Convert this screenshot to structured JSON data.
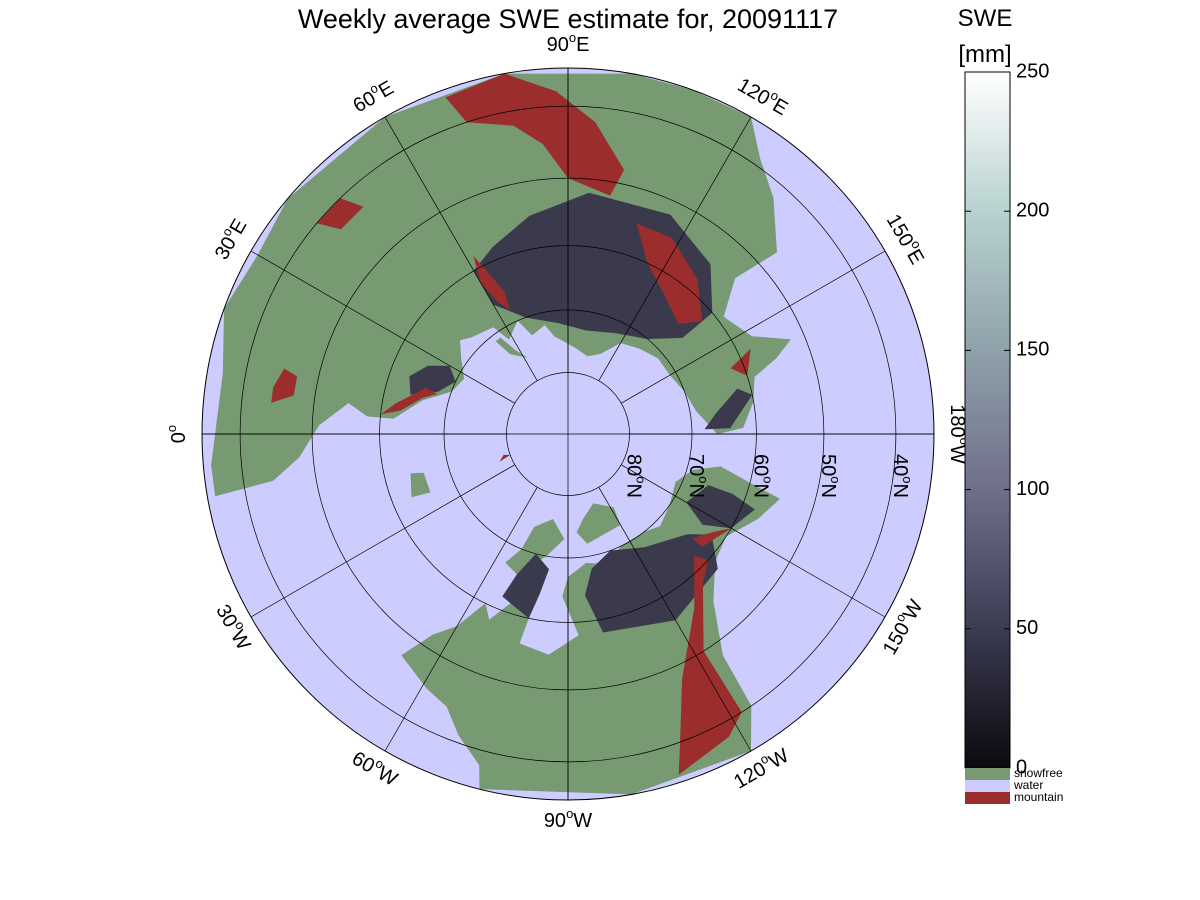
{
  "title": "Weekly average SWE estimate for, 20091117",
  "colorbar": {
    "unit_top": "SWE",
    "unit_bottom": "[mm]",
    "ticks": [
      {
        "value": 0,
        "label": "0"
      },
      {
        "value": 50,
        "label": "50"
      },
      {
        "value": 100,
        "label": "100"
      },
      {
        "value": 150,
        "label": "150"
      },
      {
        "value": 200,
        "label": "200"
      },
      {
        "value": 250,
        "label": "250"
      }
    ],
    "range": [
      0,
      250
    ],
    "colors": [
      "#0a0a0e",
      "#3b3b52",
      "#6f6f8a",
      "#8fa1aa",
      "#b8d2d0",
      "#ffffff"
    ]
  },
  "categories": [
    {
      "label": "snowfree",
      "color": "#779a72"
    },
    {
      "label": "water",
      "color": "#ccccff"
    },
    {
      "label": "mountain",
      "color": "#9b2d2d"
    }
  ],
  "map": {
    "projection": "north polar stereographic",
    "ocean_color": "#ccccff",
    "land_color": "#779a72",
    "mountain_color": "#9b2d2d",
    "snow_color": "#3a3a4c",
    "longitudes": [
      {
        "deg": 0,
        "label": "0",
        "sup": "o",
        "suffix": ""
      },
      {
        "deg": 30,
        "label": "30",
        "sup": "o",
        "suffix": "E"
      },
      {
        "deg": 60,
        "label": "60",
        "sup": "o",
        "suffix": "E"
      },
      {
        "deg": 90,
        "label": "90",
        "sup": "o",
        "suffix": "E"
      },
      {
        "deg": 120,
        "label": "120",
        "sup": "o",
        "suffix": "E"
      },
      {
        "deg": 150,
        "label": "150",
        "sup": "o",
        "suffix": "E"
      },
      {
        "deg": 180,
        "label": "180",
        "sup": "o",
        "suffix": "W"
      },
      {
        "deg": 210,
        "label": "150",
        "sup": "o",
        "suffix": "W"
      },
      {
        "deg": 240,
        "label": "120",
        "sup": "o",
        "suffix": "W"
      },
      {
        "deg": 270,
        "label": "90",
        "sup": "o",
        "suffix": "W"
      },
      {
        "deg": 300,
        "label": "60",
        "sup": "o",
        "suffix": "W"
      },
      {
        "deg": 330,
        "label": "30",
        "sup": "o",
        "suffix": "W"
      }
    ],
    "latitudes": [
      {
        "deg": 80,
        "label": "80",
        "sup": "o",
        "suffix": "N"
      },
      {
        "deg": 70,
        "label": "70",
        "sup": "o",
        "suffix": "N"
      },
      {
        "deg": 60,
        "label": "60",
        "sup": "o",
        "suffix": "N"
      },
      {
        "deg": 50,
        "label": "50",
        "sup": "o",
        "suffix": "N"
      },
      {
        "deg": 40,
        "label": "40",
        "sup": "o",
        "suffix": "N"
      }
    ],
    "boundary_latitude": 35
  }
}
